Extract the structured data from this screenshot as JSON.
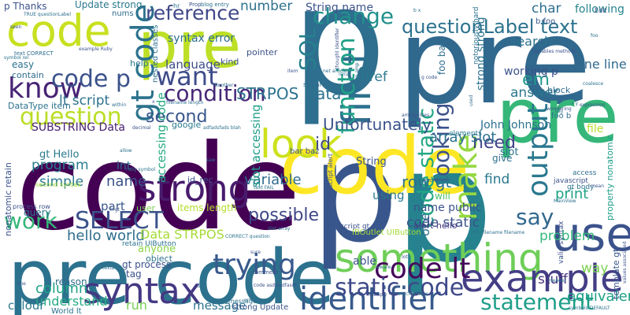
{
  "word_cloud": {
    "words": [
      {
        "text": "p",
        "color": "#2e6e8e"
      },
      {
        "text": "code",
        "color": "#440154"
      },
      {
        "text": "pre",
        "color": "#31688e"
      },
      {
        "text": "p",
        "color": "#26828e"
      },
      {
        "text": "pre",
        "color": "#35b779"
      },
      {
        "text": "code",
        "color": "#c8e020"
      },
      {
        "text": "pre code",
        "color": "#2c728e"
      },
      {
        "text": "p",
        "color": "#39568c"
      },
      {
        "text": "pre",
        "color": "#bddf26"
      },
      {
        "text": "code",
        "color": "#fde725"
      },
      {
        "text": "something",
        "color": "#6ece58"
      },
      {
        "text": "example",
        "color": "#433e85"
      },
      {
        "text": "identifier",
        "color": "#375a8c"
      },
      {
        "text": "syntax",
        "color": "#443983"
      },
      {
        "text": "use",
        "color": "#3b528b"
      },
      {
        "text": "look",
        "color": "#cde11d"
      },
      {
        "text": "code lt",
        "color": "#46085c"
      },
      {
        "text": "strong",
        "color": "#481b6d"
      },
      {
        "text": "static code",
        "color": "#3e4989"
      },
      {
        "text": "trying",
        "color": "#38598c"
      },
      {
        "text": "condition",
        "color": "#482878"
      },
      {
        "text": "want",
        "color": "#3e4c8a"
      },
      {
        "text": "know",
        "color": "#482475"
      },
      {
        "text": "question",
        "color": "#bade28"
      },
      {
        "text": "SELECT",
        "color": "#3b528b"
      },
      {
        "text": "first",
        "color": "#2d708e"
      },
      {
        "text": "make",
        "color": "#95d840"
      },
      {
        "text": "output",
        "color": "#2a788e"
      },
      {
        "text": "change",
        "color": "#21918c"
      },
      {
        "text": "function",
        "color": "#1fa187"
      },
      {
        "text": "gt code",
        "color": "#2c728e"
      },
      {
        "text": "code p",
        "color": "#3b528b"
      },
      {
        "text": "reference",
        "color": "#3f4788"
      },
      {
        "text": "work",
        "color": "#35b779"
      },
      {
        "text": "possible",
        "color": "#3f4788"
      },
      {
        "text": "say",
        "color": "#31688e"
      },
      {
        "text": "second",
        "color": "#39568c"
      },
      {
        "text": "looking",
        "color": "#3b528b"
      },
      {
        "text": "code static",
        "color": "#22a884"
      },
      {
        "text": "statement",
        "color": "#1f9e89"
      },
      {
        "text": "SQL",
        "color": "#277f8e"
      },
      {
        "text": "STRPOS Data",
        "color": "#2c728e"
      },
      {
        "text": "em",
        "color": "#1f998a"
      },
      {
        "text": "questionLabel text",
        "color": "#2c728e"
      },
      {
        "text": "id",
        "color": "#3e4989"
      },
      {
        "text": "need",
        "color": "#414487"
      },
      {
        "text": "Unfortunately",
        "color": "#3b528b"
      },
      {
        "text": "answer",
        "color": "#2a788e"
      },
      {
        "text": "hello world",
        "color": "#2e6e8e"
      },
      {
        "text": "column",
        "color": "#20a386"
      },
      {
        "text": "name",
        "color": "#3b528b"
      },
      {
        "text": "lt script",
        "color": "#2c728e"
      },
      {
        "text": "print",
        "color": "#20a386"
      },
      {
        "text": "String name",
        "color": "#3b528b"
      },
      {
        "text": "program",
        "color": "#287c8e"
      },
      {
        "text": "simple",
        "color": "#2a788e"
      },
      {
        "text": "variable",
        "color": "#2f6b8e"
      },
      {
        "text": "one line",
        "color": "#31688e"
      },
      {
        "text": "way",
        "color": "#7ad151"
      },
      {
        "text": "problem",
        "color": "#35b779"
      },
      {
        "text": "stuff",
        "color": "#46327e"
      },
      {
        "text": "equivalent",
        "color": "#1fa187"
      },
      {
        "text": "understand",
        "color": "#25ab82"
      },
      {
        "text": "colour",
        "color": "#29798e"
      },
      {
        "text": "message",
        "color": "#2c728e"
      },
      {
        "text": "run",
        "color": "#75d054"
      },
      {
        "text": "row gt",
        "color": "#2d708e"
      },
      {
        "text": "find",
        "color": "#2a788e"
      },
      {
        "text": "array slot",
        "color": "#2c728e"
      },
      {
        "text": "one",
        "color": "#2e6e8e"
      },
      {
        "text": "Data STRPOS",
        "color": "#a5db36"
      },
      {
        "text": "SUBSTRING Data",
        "color": "#481f70"
      },
      {
        "text": "gt Hello",
        "color": "#2a788e"
      },
      {
        "text": "language",
        "color": "#3e4c8a"
      },
      {
        "text": "search",
        "color": "#2c728e"
      },
      {
        "text": "char",
        "color": "#2e6e8e"
      },
      {
        "text": "following",
        "color": "#25848e"
      },
      {
        "text": "href",
        "color": "#2a788e"
      },
      {
        "text": "number",
        "color": "#2c728e"
      },
      {
        "text": "syntax error",
        "color": "#2e6e8e"
      },
      {
        "text": "part",
        "color": "#39568c"
      },
      {
        "text": "int",
        "color": "#2d708e"
      },
      {
        "text": "accessing code",
        "color": "#25ab82"
      },
      {
        "text": "slot accessing",
        "color": "#1f9e89"
      },
      {
        "text": "code static",
        "color": "#3b528b"
      },
      {
        "text": "John Johnson",
        "color": "#2c728e"
      },
      {
        "text": "working p",
        "color": "#3b528b"
      },
      {
        "text": "strong strong",
        "color": "#2c728e"
      },
      {
        "text": "items length",
        "color": "#b5de2b"
      },
      {
        "text": "anyone",
        "color": "#8bd646"
      },
      {
        "text": "gt process",
        "color": "#3b528b"
      },
      {
        "text": "name public",
        "color": "#3b528b"
      },
      {
        "text": "slot",
        "color": "#2c728e"
      },
      {
        "text": "give",
        "color": "#2e6e8e"
      },
      {
        "text": "alert hello",
        "color": "#443983"
      },
      {
        "text": "using",
        "color": "#2a788e"
      },
      {
        "text": "able",
        "color": "#3b528b"
      },
      {
        "text": "file",
        "color": "#b8de29"
      },
      {
        "text": "Edit",
        "color": "#39568c"
      },
      {
        "text": "foo bar",
        "color": "#2e6e8e"
      },
      {
        "text": "b foo",
        "color": "#39568c"
      },
      {
        "text": "foo b",
        "color": "#2c728e"
      },
      {
        "text": "String",
        "color": "#3b528b"
      },
      {
        "text": "will",
        "color": "#4ac16d"
      },
      {
        "text": "query",
        "color": "#2a788e"
      },
      {
        "text": "tag",
        "color": "#3b528b"
      },
      {
        "text": "object",
        "color": "#2c728e"
      },
      {
        "text": "reason",
        "color": "#2e6e8e"
      },
      {
        "text": "DataType item",
        "color": "#2c728e"
      },
      {
        "text": "nonatomic retain",
        "color": "#3b528b"
      },
      {
        "text": "p Thanks",
        "color": "#3b528b"
      },
      {
        "text": "Update strong",
        "color": "#2a788e"
      },
      {
        "text": "easy",
        "color": "#2c728e"
      },
      {
        "text": "contain",
        "color": "#2e6e8e"
      },
      {
        "text": "google",
        "color": "#2a788e"
      },
      {
        "text": "kind",
        "color": "#3b528b"
      },
      {
        "text": "pointer",
        "color": "#3b528b"
      },
      {
        "text": "id_rec",
        "color": "#3b528b"
      },
      {
        "text": "template gt",
        "color": "#39568c"
      },
      {
        "text": "block",
        "color": "#2e6e8e"
      },
      {
        "text": "nums",
        "color": "#2e6e8e"
      },
      {
        "text": "help",
        "color": "#2a788e"
      },
      {
        "text": "user",
        "color": "#7ad151"
      },
      {
        "text": "World lt",
        "color": "#2c728e"
      },
      {
        "text": "strong Update",
        "color": "#3b528b"
      },
      {
        "text": "IBOutlet UIButton",
        "color": "#a5db36"
      },
      {
        "text": "retain UIButton",
        "color": "#2c728e"
      },
      {
        "text": "bar baz",
        "color": "#3b528b"
      },
      {
        "text": "elements",
        "color": "#2a788e"
      },
      {
        "text": "incorrect",
        "color": "#2e6e8e"
      },
      {
        "text": "javascript",
        "color": "#3b528b"
      },
      {
        "text": "notoriously hard",
        "color": "#2c728e"
      },
      {
        "text": "valid syntax",
        "color": "#3b528b"
      },
      {
        "text": "property nonatomic",
        "color": "#1f9e89"
      },
      {
        "text": "text CORRECT",
        "color": "#2e6e8e"
      },
      {
        "text": "second syntax",
        "color": "#a0da39"
      },
      {
        "text": "process row",
        "color": "#3b528b"
      },
      {
        "text": "hr",
        "color": "#2c728e"
      },
      {
        "text": "Prop",
        "color": "#3b528b"
      },
      {
        "text": "blog entry",
        "color": "#2c728e"
      },
      {
        "text": "scalar ref",
        "color": "#2e6e8e"
      },
      {
        "text": "script gt",
        "color": "#3b528b"
      },
      {
        "text": "gt body",
        "color": "#2c728e"
      },
      {
        "text": "access",
        "color": "#2e6e8e"
      },
      {
        "text": "nested classes",
        "color": "#2c728e"
      },
      {
        "text": "comment",
        "color": "#3b528b"
      },
      {
        "text": "message end",
        "color": "#2e6e8e"
      },
      {
        "text": "multiply",
        "color": "#3b528b"
      },
      {
        "text": "aware",
        "color": "#2c728e"
      },
      {
        "text": "javascript alert",
        "color": "#3b528b"
      },
      {
        "text": "text FAIL",
        "color": "#2e6e8e"
      },
      {
        "text": "allow",
        "color": "#2c728e"
      },
      {
        "text": "seen",
        "color": "#3b528b"
      },
      {
        "text": "within",
        "color": "#2e6e8e"
      },
      {
        "text": "ruby symbol",
        "color": "#2c728e"
      },
      {
        "text": "mean",
        "color": "#3b528b"
      },
      {
        "text": "MainView",
        "color": "#2e6e8e"
      },
      {
        "text": "ambiguities",
        "color": "#3b528b"
      },
      {
        "text": "loop",
        "color": "#2c728e"
      },
      {
        "text": "variables methods",
        "color": "#3b528b"
      },
      {
        "text": "filename length",
        "color": "#2e6e8e"
      },
      {
        "text": "example Ruby",
        "color": "#3b528b"
      },
      {
        "text": "symbol rel",
        "color": "#2c728e"
      },
      {
        "text": "TRUE questionLabel",
        "color": "#2e6e8e"
      },
      {
        "text": "thought identifier",
        "color": "#3b528b"
      },
      {
        "text": "net articles",
        "color": "#2c728e"
      },
      {
        "text": "say",
        "color": "#2e6e8e"
      },
      {
        "text": "wondering",
        "color": "#3b528b"
      },
      {
        "text": "coalesce",
        "color": "#2c728e"
      },
      {
        "text": "foo",
        "color": "#2e6e8e"
      },
      {
        "text": "item",
        "color": "#3b528b"
      },
      {
        "text": "Header",
        "color": "#2c728e"
      },
      {
        "text": "sure",
        "color": "#3b528b"
      },
      {
        "text": "SET",
        "color": "#2e6e8e"
      },
      {
        "text": "lot",
        "color": "#3b528b"
      },
      {
        "text": "error",
        "color": "#2c728e"
      },
      {
        "text": "text2",
        "color": "#2e6e8e"
      },
      {
        "text": "line",
        "color": "#3b528b"
      },
      {
        "text": "CORRECT question",
        "color": "#2c728e"
      },
      {
        "text": "articles ways",
        "color": "#2e6e8e"
      },
      {
        "text": "code asdfasdfasdf",
        "color": "#3b528b"
      },
      {
        "text": "symbols DEFAULT",
        "color": "#2c728e"
      },
      {
        "text": "filename filename",
        "color": "#2e6e8e"
      },
      {
        "text": "h gt",
        "color": "#3b528b"
      },
      {
        "text": "adfadsfads blah",
        "color": "#2c728e"
      },
      {
        "text": "another",
        "color": "#2e6e8e"
      },
      {
        "text": "decimal",
        "color": "#3b528b"
      },
      {
        "text": "isnull",
        "color": "#2c728e"
      },
      {
        "text": "amp amp",
        "color": "#2e6e8e"
      },
      {
        "text": "expression",
        "color": "#3b528b"
      },
      {
        "text": "tell",
        "color": "#2c728e"
      },
      {
        "text": "x y",
        "color": "#2e6e8e"
      },
      {
        "text": "g code",
        "color": "#3b528b"
      },
      {
        "text": "b x",
        "color": "#2c728e"
      },
      {
        "text": "used",
        "color": "#2e6e8e"
      },
      {
        "text": "values associated",
        "color": "#3b528b"
      },
      {
        "text": "slot array",
        "color": "#2c728e"
      },
      {
        "text": "saw",
        "color": "#2e6e8e"
      },
      {
        "text": "x",
        "color": "#3b528b"
      }
    ]
  }
}
